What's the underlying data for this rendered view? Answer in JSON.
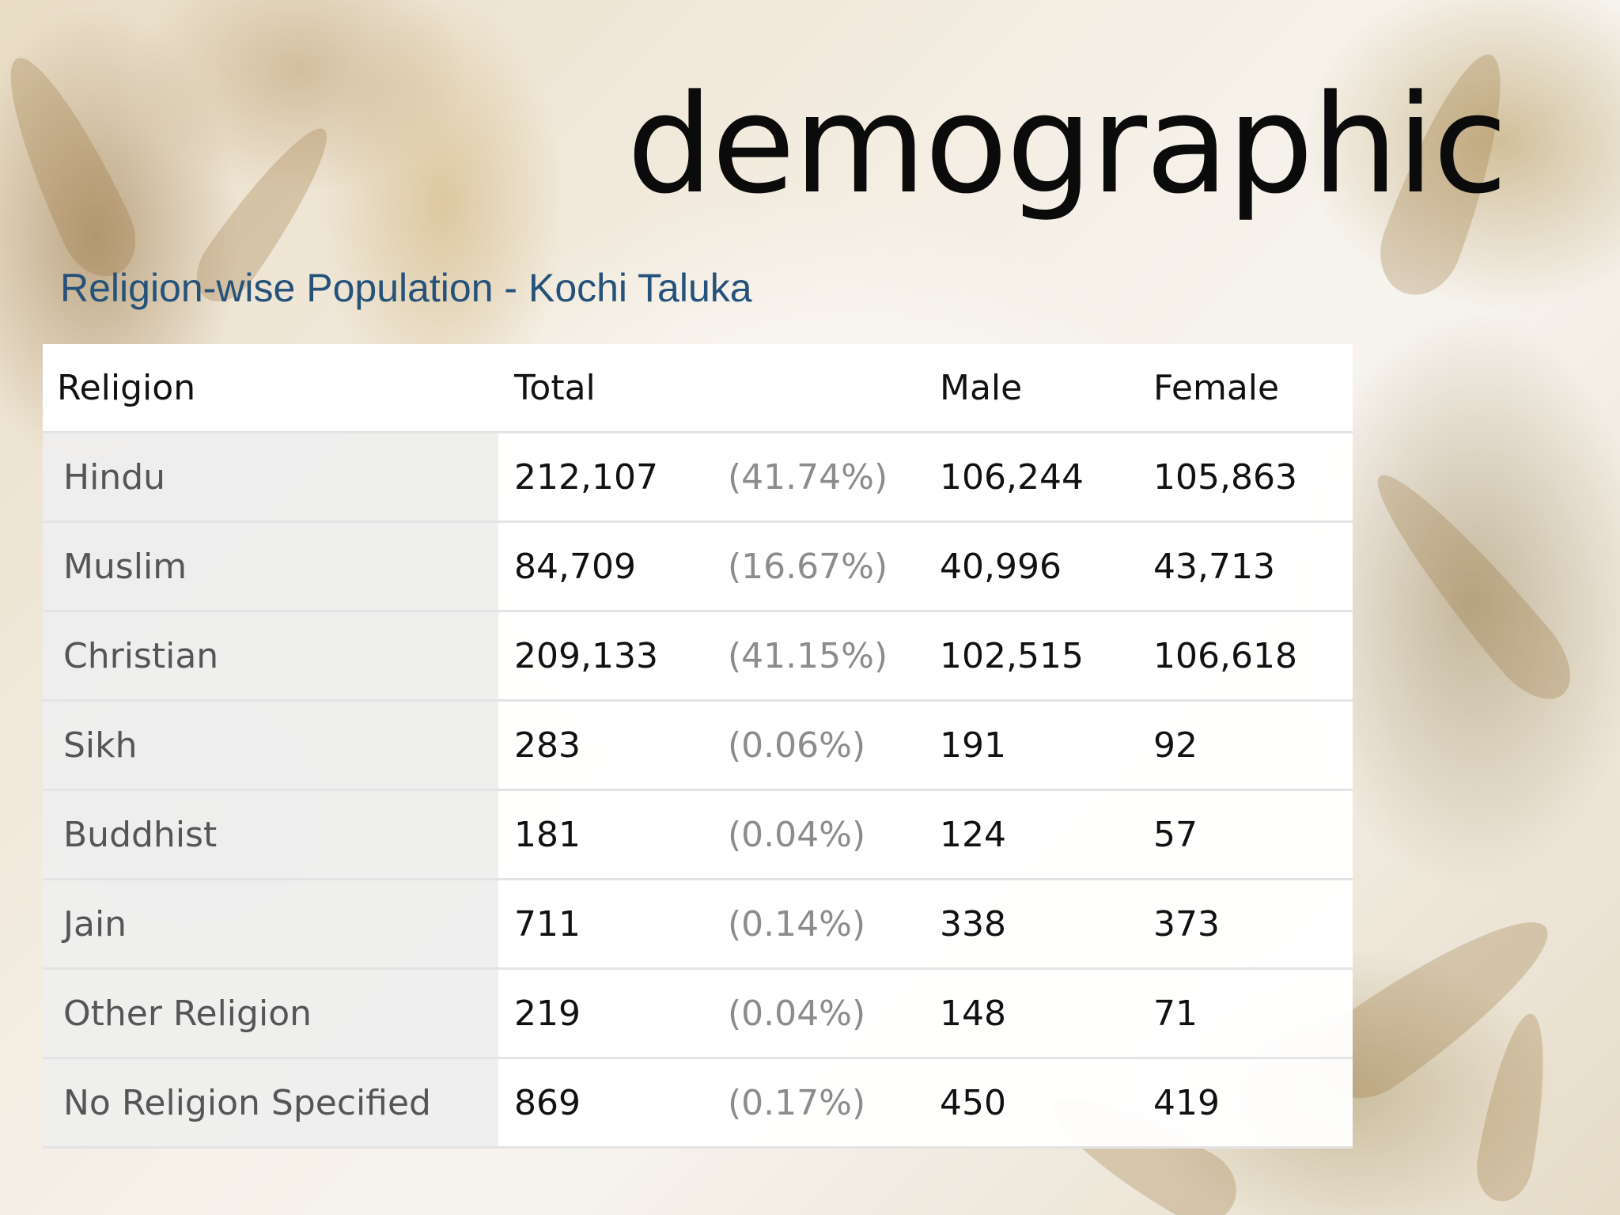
{
  "slide": {
    "title": "demographic",
    "subtitle": "Religion-wise Population - Kochi Taluka"
  },
  "table": {
    "headers": {
      "religion": "Religion",
      "total": "Total",
      "percent": "",
      "male": "Male",
      "female": "Female"
    },
    "rows": [
      {
        "religion": "Hindu",
        "total": "212,107",
        "percent": "(41.74%)",
        "male": "106,244",
        "female": "105,863"
      },
      {
        "religion": "Muslim",
        "total": "84,709",
        "percent": "(16.67%)",
        "male": "40,996",
        "female": "43,713"
      },
      {
        "religion": "Christian",
        "total": "209,133",
        "percent": "(41.15%)",
        "male": "102,515",
        "female": "106,618"
      },
      {
        "religion": "Sikh",
        "total": "283",
        "percent": "(0.06%)",
        "male": "191",
        "female": "92"
      },
      {
        "religion": "Buddhist",
        "total": "181",
        "percent": "(0.04%)",
        "male": "124",
        "female": "57"
      },
      {
        "religion": "Jain",
        "total": "711",
        "percent": "(0.14%)",
        "male": "338",
        "female": "373"
      },
      {
        "religion": "Other Religion",
        "total": "219",
        "percent": "(0.04%)",
        "male": "148",
        "female": "71"
      },
      {
        "religion": "No Religion Specified",
        "total": "869",
        "percent": "(0.17%)",
        "male": "450",
        "female": "419"
      }
    ]
  }
}
